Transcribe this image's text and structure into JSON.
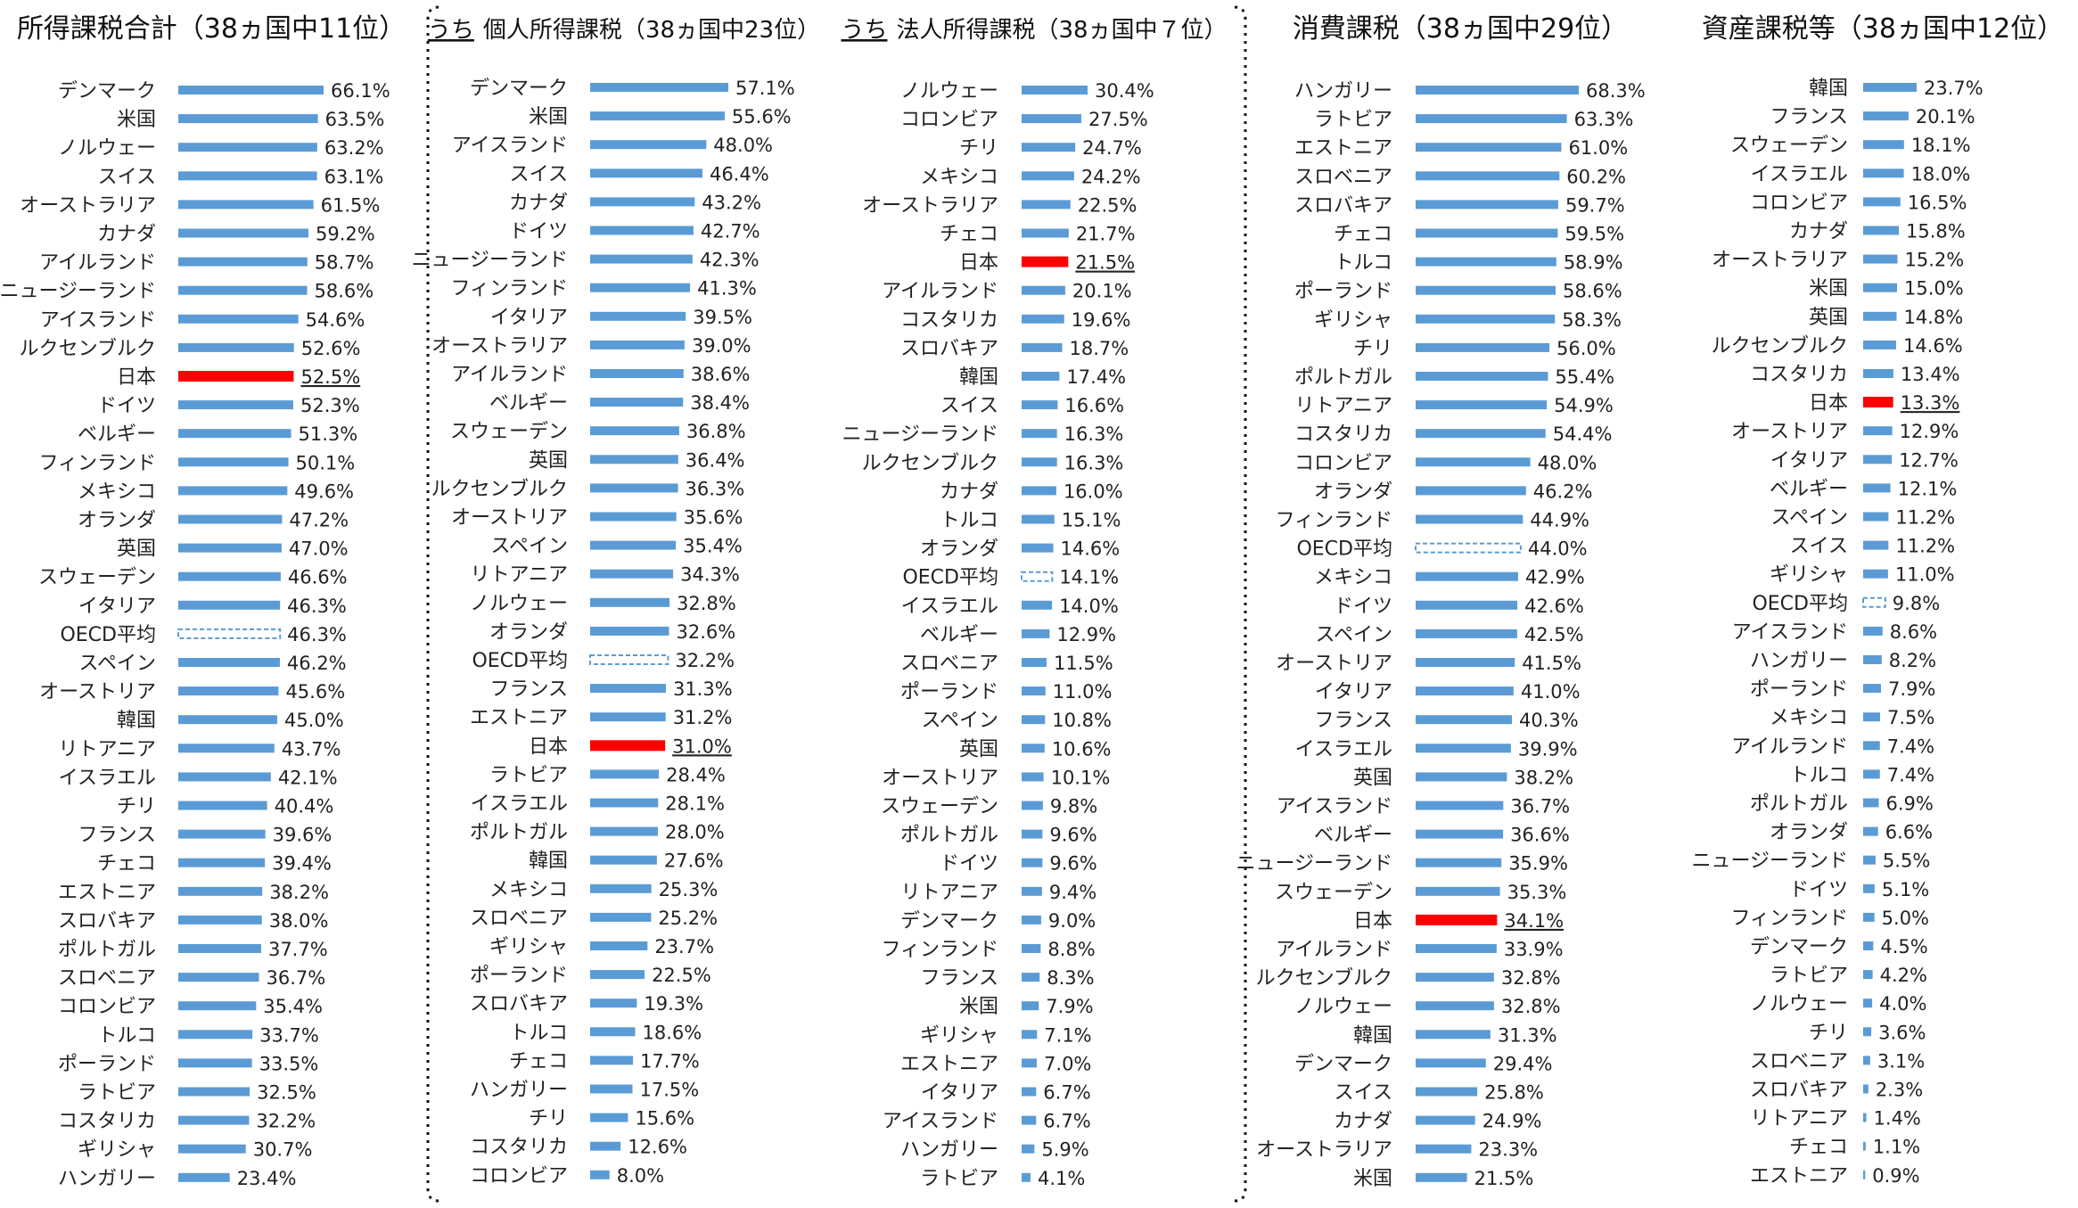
{
  "colors": {
    "bar": "#5b9bd5",
    "japan": "#ff0000",
    "oecd_border": "#5b9bd5"
  },
  "chart_data": [
    {
      "type": "bar",
      "orientation": "horizontal",
      "title": "所得課税合計（38ヵ国中11位）",
      "categories": [
        "デンマーク",
        "米国",
        "ノルウェー",
        "スイス",
        "オーストラリア",
        "カナダ",
        "アイルランド",
        "ニュージーランド",
        "アイスランド",
        "ルクセンブルク",
        "日本",
        "ドイツ",
        "ベルギー",
        "フィンランド",
        "メキシコ",
        "オランダ",
        "英国",
        "スウェーデン",
        "イタリア",
        "OECD平均",
        "スペイン",
        "オーストリア",
        "韓国",
        "リトアニア",
        "イスラエル",
        "チリ",
        "フランス",
        "チェコ",
        "エストニア",
        "スロバキア",
        "ポルトガル",
        "スロベニア",
        "コロンビア",
        "トルコ",
        "ポーランド",
        "ラトビア",
        "コスタリカ",
        "ギリシャ",
        "ハンガリー"
      ],
      "values": [
        66.1,
        63.5,
        63.2,
        63.1,
        61.5,
        59.2,
        58.7,
        58.6,
        54.6,
        52.6,
        52.5,
        52.3,
        51.3,
        50.1,
        49.6,
        47.2,
        47.0,
        46.6,
        46.3,
        46.3,
        46.2,
        45.6,
        45.0,
        43.7,
        42.1,
        40.4,
        39.6,
        39.4,
        38.2,
        38.0,
        37.7,
        36.7,
        35.4,
        33.7,
        33.5,
        32.5,
        32.2,
        30.7,
        23.4
      ],
      "value_labels": [
        "66.1%",
        "63.5%",
        "63.2%",
        "63.1%",
        "61.5%",
        "59.2%",
        "58.7%",
        "58.6%",
        "54.6%",
        "52.6%",
        "52.5%",
        "52.3%",
        "51.3%",
        "50.1%",
        "49.6%",
        "47.2%",
        "47.0%",
        "46.6%",
        "46.3%",
        "46.3%",
        "46.2%",
        "45.6%",
        "45.0%",
        "43.7%",
        "42.1%",
        "40.4%",
        "39.6%",
        "39.4%",
        "38.2%",
        "38.0%",
        "37.7%",
        "36.7%",
        "35.4%",
        "33.7%",
        "33.5%",
        "32.5%",
        "32.2%",
        "30.7%",
        "23.4%"
      ],
      "highlight": "日本",
      "average": "OECD平均",
      "xlim": [
        0,
        80
      ]
    },
    {
      "type": "bar",
      "orientation": "horizontal",
      "title_prefix": "うち",
      "title": "個人所得課税（38ヵ国中23位）",
      "categories": [
        "デンマーク",
        "米国",
        "アイスランド",
        "スイス",
        "カナダ",
        "ドイツ",
        "ニュージーランド",
        "フィンランド",
        "イタリア",
        "オーストラリア",
        "アイルランド",
        "ベルギー",
        "スウェーデン",
        "英国",
        "ルクセンブルク",
        "オーストリア",
        "スペイン",
        "リトアニア",
        "ノルウェー",
        "オランダ",
        "OECD平均",
        "フランス",
        "エストニア",
        "日本",
        "ラトビア",
        "イスラエル",
        "ポルトガル",
        "韓国",
        "メキシコ",
        "スロベニア",
        "ギリシャ",
        "ポーランド",
        "スロバキア",
        "トルコ",
        "チェコ",
        "ハンガリー",
        "チリ",
        "コスタリカ",
        "コロンビア"
      ],
      "values": [
        57.1,
        55.6,
        48.0,
        46.4,
        43.2,
        42.7,
        42.3,
        41.3,
        39.5,
        39.0,
        38.6,
        38.4,
        36.8,
        36.4,
        36.3,
        35.6,
        35.4,
        34.3,
        32.8,
        32.6,
        32.2,
        31.3,
        31.2,
        31.0,
        28.4,
        28.1,
        28.0,
        27.6,
        25.3,
        25.2,
        23.7,
        22.5,
        19.3,
        18.6,
        17.7,
        17.5,
        15.6,
        12.6,
        8.0
      ],
      "value_labels": [
        "57.1%",
        "55.6%",
        "48.0%",
        "46.4%",
        "43.2%",
        "42.7%",
        "42.3%",
        "41.3%",
        "39.5%",
        "39.0%",
        "38.6%",
        "38.4%",
        "36.8%",
        "36.4%",
        "36.3%",
        "35.6%",
        "35.4%",
        "34.3%",
        "32.8%",
        "32.6%",
        "32.2%",
        "31.3%",
        "31.2%",
        "31.0%",
        "28.4%",
        "28.1%",
        "28.0%",
        "27.6%",
        "25.3%",
        "25.2%",
        "23.7%",
        "22.5%",
        "19.3%",
        "18.6%",
        "17.7%",
        "17.5%",
        "15.6%",
        "12.6%",
        "8.0%"
      ],
      "highlight": "日本",
      "average": "OECD平均",
      "xlim": [
        0,
        70
      ]
    },
    {
      "type": "bar",
      "orientation": "horizontal",
      "title_prefix": "うち",
      "title": "法人所得課税（38ヵ国中７位）",
      "categories": [
        "ノルウェー",
        "コロンビア",
        "チリ",
        "メキシコ",
        "オーストラリア",
        "チェコ",
        "日本",
        "アイルランド",
        "コスタリカ",
        "スロバキア",
        "韓国",
        "スイス",
        "ニュージーランド",
        "ルクセンブルク",
        "カナダ",
        "トルコ",
        "オランダ",
        "OECD平均",
        "イスラエル",
        "ベルギー",
        "スロベニア",
        "ポーランド",
        "スペイン",
        "英国",
        "オーストリア",
        "スウェーデン",
        "ポルトガル",
        "ドイツ",
        "リトアニア",
        "デンマーク",
        "フィンランド",
        "フランス",
        "米国",
        "ギリシャ",
        "エストニア",
        "イタリア",
        "アイスランド",
        "ハンガリー",
        "ラトビア"
      ],
      "values": [
        30.4,
        27.5,
        24.7,
        24.2,
        22.5,
        21.7,
        21.5,
        20.1,
        19.6,
        18.7,
        17.4,
        16.6,
        16.3,
        16.3,
        16.0,
        15.1,
        14.6,
        14.1,
        14.0,
        12.9,
        11.5,
        11.0,
        10.8,
        10.6,
        10.1,
        9.8,
        9.6,
        9.6,
        9.4,
        9.0,
        8.8,
        8.3,
        7.9,
        7.1,
        7.0,
        6.7,
        6.7,
        5.9,
        4.1
      ],
      "value_labels": [
        "30.4%",
        "27.5%",
        "24.7%",
        "24.2%",
        "22.5%",
        "21.7%",
        "21.5%",
        "20.1%",
        "19.6%",
        "18.7%",
        "17.4%",
        "16.6%",
        "16.3%",
        "16.3%",
        "16.0%",
        "15.1%",
        "14.6%",
        "14.1%",
        "14.0%",
        "12.9%",
        "11.5%",
        "11.0%",
        "10.8%",
        "10.6%",
        "10.1%",
        "9.8%",
        "9.6%",
        "9.6%",
        "9.4%",
        "9.0%",
        "8.8%",
        "8.3%",
        "7.9%",
        "7.1%",
        "7.0%",
        "6.7%",
        "6.7%",
        "5.9%",
        "4.1%"
      ],
      "highlight": "日本",
      "average": "OECD平均",
      "xlim": [
        0,
        40
      ]
    },
    {
      "type": "bar",
      "orientation": "horizontal",
      "title": "消費課税（38ヵ国中29位）",
      "categories": [
        "ハンガリー",
        "ラトビア",
        "エストニア",
        "スロベニア",
        "スロバキア",
        "チェコ",
        "トルコ",
        "ポーランド",
        "ギリシャ",
        "チリ",
        "ポルトガル",
        "リトアニア",
        "コスタリカ",
        "コロンビア",
        "オランダ",
        "フィンランド",
        "OECD平均",
        "メキシコ",
        "ドイツ",
        "スペイン",
        "オーストリア",
        "イタリア",
        "フランス",
        "イスラエル",
        "英国",
        "アイスランド",
        "ベルギー",
        "ニュージーランド",
        "スウェーデン",
        "日本",
        "アイルランド",
        "ルクセンブルク",
        "ノルウェー",
        "韓国",
        "デンマーク",
        "スイス",
        "カナダ",
        "オーストラリア",
        "米国"
      ],
      "values": [
        68.3,
        63.3,
        61.0,
        60.2,
        59.7,
        59.5,
        58.9,
        58.6,
        58.3,
        56.0,
        55.4,
        54.9,
        54.4,
        48.0,
        46.2,
        44.9,
        44.0,
        42.9,
        42.6,
        42.5,
        41.5,
        41.0,
        40.3,
        39.9,
        38.2,
        36.7,
        36.6,
        35.9,
        35.3,
        34.1,
        33.9,
        32.8,
        32.8,
        31.3,
        29.4,
        25.8,
        24.9,
        23.3,
        21.5
      ],
      "value_labels": [
        "68.3%",
        "63.3%",
        "61.0%",
        "60.2%",
        "59.7%",
        "59.5%",
        "58.9%",
        "58.6%",
        "58.3%",
        "56.0%",
        "55.4%",
        "54.9%",
        "54.4%",
        "48.0%",
        "46.2%",
        "44.9%",
        "44.0%",
        "42.9%",
        "42.6%",
        "42.5%",
        "41.5%",
        "41.0%",
        "40.3%",
        "39.9%",
        "38.2%",
        "36.7%",
        "36.6%",
        "35.9%",
        "35.3%",
        "34.1%",
        "33.9%",
        "32.8%",
        "32.8%",
        "31.3%",
        "29.4%",
        "25.8%",
        "24.9%",
        "23.3%",
        "21.5%"
      ],
      "highlight": "日本",
      "average": "OECD平均",
      "xlim": [
        0,
        70
      ]
    },
    {
      "type": "bar",
      "orientation": "horizontal",
      "title": "資産課税等（38ヵ国中12位）",
      "categories": [
        "韓国",
        "フランス",
        "スウェーデン",
        "イスラエル",
        "コロンビア",
        "カナダ",
        "オーストラリア",
        "米国",
        "英国",
        "ルクセンブルク",
        "コスタリカ",
        "日本",
        "オーストリア",
        "イタリア",
        "ベルギー",
        "スペイン",
        "スイス",
        "ギリシャ",
        "OECD平均",
        "アイスランド",
        "ハンガリー",
        "ポーランド",
        "メキシコ",
        "アイルランド",
        "トルコ",
        "ポルトガル",
        "オランダ",
        "ニュージーランド",
        "ドイツ",
        "フィンランド",
        "デンマーク",
        "ラトビア",
        "ノルウェー",
        "チリ",
        "スロベニア",
        "スロバキア",
        "リトアニア",
        "チェコ",
        "エストニア"
      ],
      "values": [
        23.7,
        20.1,
        18.1,
        18.0,
        16.5,
        15.8,
        15.2,
        15.0,
        14.8,
        14.6,
        13.4,
        13.3,
        12.9,
        12.7,
        12.1,
        11.2,
        11.2,
        11.0,
        9.8,
        8.6,
        8.2,
        7.9,
        7.5,
        7.4,
        7.4,
        6.9,
        6.6,
        5.5,
        5.1,
        5.0,
        4.5,
        4.2,
        4.0,
        3.6,
        3.1,
        2.3,
        1.4,
        1.1,
        0.9
      ],
      "value_labels": [
        "23.7%",
        "20.1%",
        "18.1%",
        "18.0%",
        "16.5%",
        "15.8%",
        "15.2%",
        "15.0%",
        "14.8%",
        "14.6%",
        "13.4%",
        "13.3%",
        "12.9%",
        "12.7%",
        "12.1%",
        "11.2%",
        "11.2%",
        "11.0%",
        "9.8%",
        "8.6%",
        "8.2%",
        "7.9%",
        "7.5%",
        "7.4%",
        "7.4%",
        "6.9%",
        "6.6%",
        "5.5%",
        "5.1%",
        "5.0%",
        "4.5%",
        "4.2%",
        "4.0%",
        "3.6%",
        "3.1%",
        "2.3%",
        "1.4%",
        "1.1%",
        "0.9%"
      ],
      "highlight": "日本",
      "average": "OECD平均",
      "xlim": [
        0,
        30
      ]
    }
  ]
}
